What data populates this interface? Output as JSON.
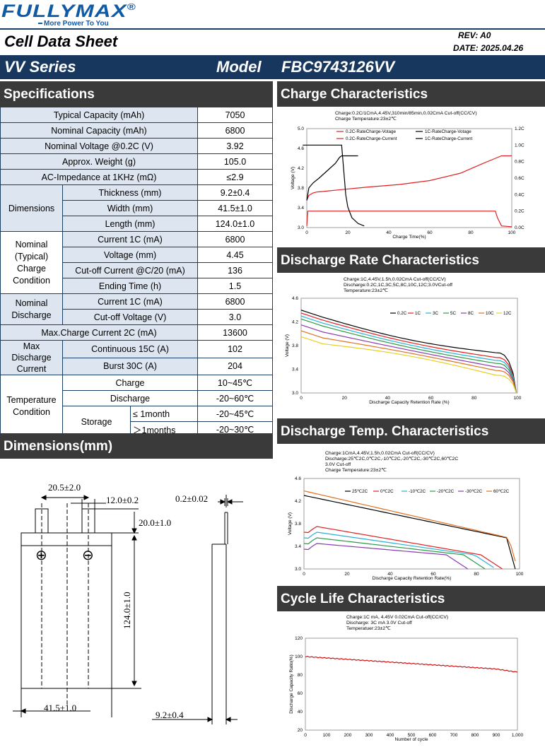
{
  "brand": {
    "name": "FULLYMAX",
    "reg": "®",
    "slogan": "More Power To You"
  },
  "doc": {
    "title": "Cell Data Sheet",
    "rev_label": "REV:",
    "rev": "A0",
    "date_label": "DATE:",
    "date": "2025.04.26",
    "series": "VV Series",
    "model_label": "Model",
    "model": "FBC9743126VV"
  },
  "sections": {
    "specs": "Specifications",
    "dimensions": "Dimensions(mm)",
    "charge": "Charge Characteristics",
    "discharge_rate": "Discharge Rate Characteristics",
    "discharge_temp": "Discharge Temp. Characteristics",
    "cycle": "Cycle Life Characteristics"
  },
  "specs": {
    "typ_capacity": {
      "label": "Typical Capacity (mAh)",
      "value": "7050"
    },
    "nom_capacity": {
      "label": "Nominal Capacity (mAh)",
      "value": "6800"
    },
    "nom_voltage": {
      "label": "Nominal Voltage @0.2C (V)",
      "value": "3.92"
    },
    "weight": {
      "label": "Approx. Weight (g)",
      "value": "105.0"
    },
    "impedance": {
      "label": "AC-Impedance at 1KHz (mΩ)",
      "value": "≤2.9"
    },
    "dim_group": "Dimensions",
    "thickness": {
      "label": "Thickness (mm)",
      "value": "9.2±0.4"
    },
    "width": {
      "label": "Width (mm)",
      "value": "41.5±1.0"
    },
    "length": {
      "label": "Length (mm)",
      "value": "124.0±1.0"
    },
    "charge_group": "Nominal (Typical) Charge Condition",
    "chg_current": {
      "label": "Current  1C (mA)",
      "value": "6800"
    },
    "chg_voltage": {
      "label": "Voltage (mm)",
      "value": "4.45"
    },
    "cutoff_current": {
      "label": "Cut-off Current @C/20 (mA)",
      "value": "136"
    },
    "end_time": {
      "label": "Ending Time (h)",
      "value": "1.5"
    },
    "dis_group": "Nominal Discharge",
    "dis_current": {
      "label": "Current 1C (mA)",
      "value": "6800"
    },
    "dis_cutoff": {
      "label": "Cut-off Voltage (V)",
      "value": "3.0"
    },
    "max_charge": {
      "label": "Max.Charge Current 2C (mA)",
      "value": "13600"
    },
    "maxdis_group": "Max Discharge Current",
    "continuous": {
      "label": "Continuous 15C (A)",
      "value": "102"
    },
    "burst": {
      "label": "Burst 30C  (A)",
      "value": "204"
    },
    "temp_group": "Temperature Condition",
    "t_charge": {
      "label": "Charge",
      "value": "10~45℃"
    },
    "t_discharge": {
      "label": "Discharge",
      "value": "-20~60℃"
    },
    "storage": "Storage",
    "t_store1": {
      "label": "≤ 1month",
      "value": "-20~45℃"
    },
    "t_store2": {
      "label": "＞1months",
      "value": "-20~30℃"
    }
  },
  "dims": {
    "tab_gap": "20.5±2.0",
    "tab_width": "12.0±0.2",
    "tab_height": "20.0±1.0",
    "tab_thick": "0.2±0.02",
    "length": "124.0±1.0",
    "width": "41.5±1.0",
    "thick": "9.2±0.4",
    "plus": "⊕",
    "minus": "⊖"
  },
  "chart_data": [
    {
      "type": "line",
      "id": "charge",
      "note1": "Charge:0.2C/1CmA,4.45V,310min/85min,0.02CmA Cut-off(CC/CV)",
      "note2": "Charge Temperature:23±2℃",
      "xlabel": "Charge Time(%)",
      "ylabel": "Voltage (V)",
      "xlim": [
        0,
        100
      ],
      "ylim": [
        3.0,
        5.0
      ],
      "y2lim": [
        0,
        1.2
      ],
      "xticks": [
        "0",
        "20",
        "40",
        "60",
        "80",
        "100"
      ],
      "yticks": [
        "3.0",
        "3.4",
        "3.8",
        "4.2",
        "4.6",
        "5.0"
      ],
      "y2ticks": [
        "0.0C",
        "0.2C",
        "0.4C",
        "0.6C",
        "0.8C",
        "1.0C",
        "1.2C"
      ],
      "series": [
        {
          "name": "0.2C-RateCharge-Votage",
          "color": "#e02020",
          "axis": "y",
          "x": [
            0,
            1,
            3,
            5,
            8,
            15,
            30,
            45,
            60,
            75,
            85,
            92,
            95,
            100
          ],
          "y": [
            3.55,
            3.65,
            3.7,
            3.72,
            3.73,
            3.76,
            3.82,
            3.87,
            3.95,
            4.1,
            4.28,
            4.4,
            4.45,
            4.45
          ]
        },
        {
          "name": "1C-RateCharge-Votage",
          "color": "#000000",
          "axis": "y",
          "x": [
            0,
            1,
            3,
            6,
            10,
            14,
            16,
            17,
            25
          ],
          "y": [
            3.55,
            3.8,
            3.9,
            4.0,
            4.15,
            4.3,
            4.42,
            4.45,
            4.45
          ]
        },
        {
          "name": "0.2C-RateCharge-Current",
          "color": "#e02020",
          "axis": "y2",
          "x": [
            0,
            0.5,
            92,
            93,
            95,
            100
          ],
          "y": [
            0.02,
            0.2,
            0.2,
            0.12,
            0.02,
            0.01
          ]
        },
        {
          "name": "1C-RateCharge-Current",
          "color": "#000000",
          "axis": "y2",
          "x": [
            -2,
            17,
            18,
            19,
            20,
            22,
            25,
            28
          ],
          "y": [
            1.0,
            1.0,
            0.7,
            0.4,
            0.25,
            0.12,
            0.05,
            0.02
          ]
        }
      ]
    },
    {
      "type": "line",
      "id": "rate",
      "note1": "Charge:1C,4.45V,1.5h,0.02CmA Cut-off(CC/CV)",
      "note2": "Discharge:0.2C,1C,3C,5C,8C,10C,12C;3.0VCut-off",
      "note3": "Temperature:23±2℃",
      "xlabel": "Discharge Capacity Retention Rate (%)",
      "ylabel": "Voltage (V)",
      "xlim": [
        0,
        100
      ],
      "ylim": [
        3.0,
        4.6
      ],
      "xticks": [
        "0",
        "20",
        "40",
        "60",
        "80",
        "100"
      ],
      "yticks": [
        "3.0",
        "3.4",
        "3.8",
        "4.2",
        "4.6"
      ],
      "series": [
        {
          "name": "0.2C",
          "color": "#000000",
          "start": 4.4,
          "mid": 3.88,
          "end": 3.68
        },
        {
          "name": "1C",
          "color": "#e02020",
          "start": 4.35,
          "mid": 3.84,
          "end": 3.6
        },
        {
          "name": "3C",
          "color": "#2ab0d8",
          "start": 4.3,
          "mid": 3.8,
          "end": 3.55
        },
        {
          "name": "5C",
          "color": "#2a9a4a",
          "start": 4.25,
          "mid": 3.76,
          "end": 3.5
        },
        {
          "name": "8C",
          "color": "#8a3ab0",
          "start": 4.15,
          "mid": 3.72,
          "end": 3.44
        },
        {
          "name": "10C",
          "color": "#e07020",
          "start": 4.05,
          "mid": 3.68,
          "end": 3.38
        },
        {
          "name": "12C",
          "color": "#e8d020",
          "start": 3.95,
          "mid": 3.64,
          "end": 3.3
        }
      ]
    },
    {
      "type": "line",
      "id": "temp",
      "note1": "Charge:1CmA,4.45V,1.5h,0.02CmA Cut-off(CC/CV)",
      "note2": "Discharge:25℃2C,0℃2C,-10℃2C,-20℃2C,-30℃2C,60℃2C",
      "note3": "3.0V Cut-off",
      "note4": "Charge Temperature:23±2℃",
      "xlabel": "Discharge Capacity Retention Rate(%)",
      "ylabel": "Voltage (V)",
      "xlim": [
        0,
        100
      ],
      "ylim": [
        3.0,
        4.6
      ],
      "xticks": [
        "0",
        "20",
        "40",
        "60",
        "80",
        "100"
      ],
      "yticks": [
        "3.0",
        "3.4",
        "3.8",
        "4.2",
        "4.6"
      ],
      "series": [
        {
          "name": "25℃2C",
          "color": "#000000",
          "start": 4.3,
          "end": 3.55,
          "xend": 98
        },
        {
          "name": "0℃2C",
          "color": "#e02020",
          "start": 3.75,
          "end": 3.0,
          "xend": 92
        },
        {
          "name": "-10℃2C",
          "color": "#2ab0d8",
          "start": 3.65,
          "end": 3.0,
          "xend": 89
        },
        {
          "name": "-20℃2C",
          "color": "#2a9a4a",
          "start": 3.55,
          "end": 3.0,
          "xend": 84
        },
        {
          "name": "-30℃2C",
          "color": "#8a3ab0",
          "start": 3.45,
          "end": 3.0,
          "xend": 76
        },
        {
          "name": "60℃2C",
          "color": "#e07020",
          "start": 4.38,
          "end": 3.55,
          "xend": 99
        }
      ]
    },
    {
      "type": "line",
      "id": "cycle",
      "note1": "Charge:1C mA,  4.45V 0.02CmA  Cut-off(CC/CV)",
      "note2": "Discharge: 3C mA  3.0V Cut-off",
      "note3": "Temperatuer:23±2℃",
      "xlabel": "Number of cycle",
      "ylabel": "Discharge Capacity Ratio(%)",
      "xlim": [
        0,
        1000
      ],
      "ylim": [
        20,
        120
      ],
      "xticks": [
        "0",
        "100",
        "200",
        "300",
        "400",
        "500",
        "600",
        "700",
        "800",
        "900",
        "1,000"
      ],
      "yticks": [
        "20",
        "40",
        "60",
        "80",
        "100",
        "120"
      ],
      "series": [
        {
          "name": "",
          "color": "#d01010",
          "x": [
            0,
            100,
            200,
            300,
            400,
            500,
            600,
            700,
            800,
            900,
            1000
          ],
          "y": [
            100,
            98.5,
            97,
            95.5,
            94,
            92.5,
            91,
            89.5,
            88,
            86.5,
            83
          ]
        }
      ]
    }
  ]
}
